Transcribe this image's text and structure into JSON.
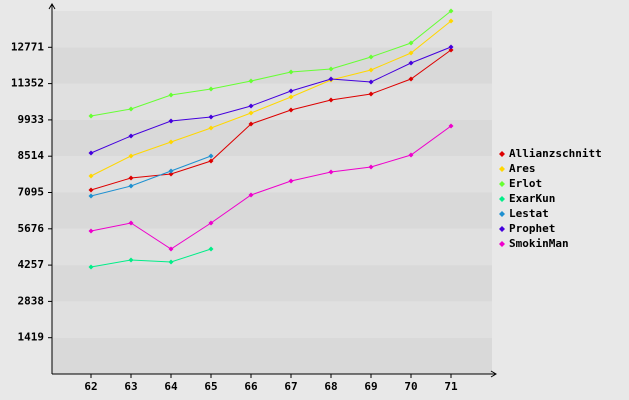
{
  "chart_data": {
    "type": "line",
    "x": [
      62,
      63,
      64,
      65,
      66,
      67,
      68,
      69,
      70,
      71
    ],
    "xlim": [
      61,
      72
    ],
    "xticks": [
      62,
      63,
      64,
      65,
      66,
      67,
      68,
      69,
      70,
      71
    ],
    "ylim": [
      0,
      14190
    ],
    "yticks": [
      1419,
      2838,
      4257,
      5676,
      7095,
      8514,
      9933,
      11352,
      12771
    ],
    "grid": true,
    "legend": "right",
    "series": [
      {
        "name": "Allianzschnitt",
        "color": "#dd0000",
        "values": [
          7193,
          7662,
          7818,
          8326,
          9773,
          10320,
          10711,
          10945,
          11532,
          12665
        ]
      },
      {
        "name": "Ares",
        "color": "#ffd700",
        "values": [
          7740,
          8522,
          9069,
          9616,
          10203,
          10828,
          11493,
          11884,
          12548,
          13799
        ]
      },
      {
        "name": "Erlot",
        "color": "#66ff33",
        "values": [
          10085,
          10359,
          10906,
          11141,
          11454,
          11805,
          11922,
          12392,
          12939,
          14190
        ]
      },
      {
        "name": "ExarKun",
        "color": "#00ee88",
        "values": [
          4183,
          4456,
          4378,
          4886,
          null,
          null,
          null,
          null,
          null,
          null
        ]
      },
      {
        "name": "Lestat",
        "color": "#1e90d0",
        "values": [
          6958,
          7349,
          7935,
          8522,
          null,
          null,
          null,
          null,
          null,
          null
        ]
      },
      {
        "name": "Prophet",
        "color": "#4400dd",
        "values": [
          8639,
          9304,
          9890,
          10046,
          10476,
          11063,
          11532,
          11415,
          12157,
          12782
        ]
      },
      {
        "name": "SmokinMan",
        "color": "#ee00cc",
        "values": [
          5590,
          5903,
          4886,
          5903,
          6997,
          7544,
          7896,
          8092,
          8561,
          9694
        ]
      }
    ]
  }
}
